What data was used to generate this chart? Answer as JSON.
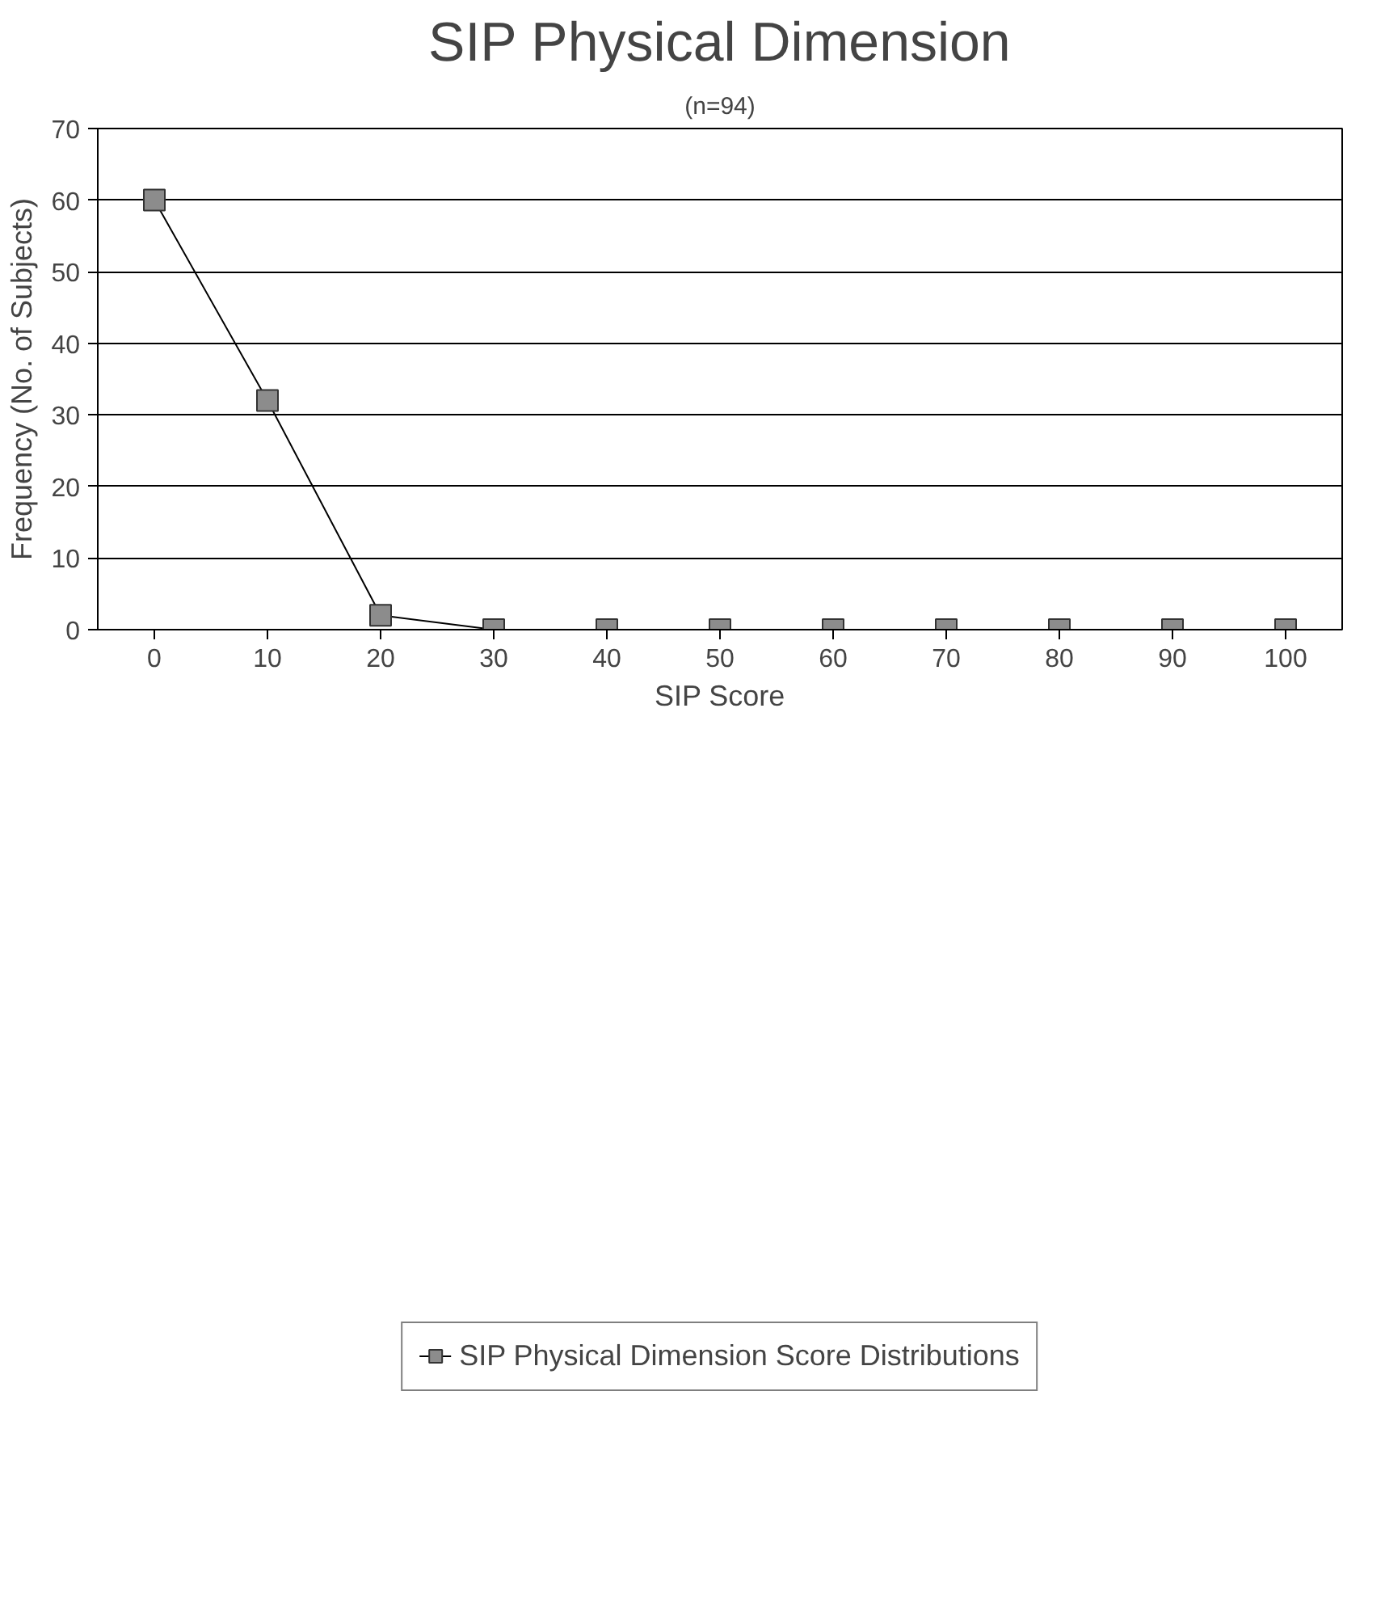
{
  "chart_data": {
    "type": "line",
    "title": "SIP Physical Dimension",
    "subtitle": "(n=94)",
    "xlabel": "SIP Score",
    "ylabel": "Frequency (No. of Subjects)",
    "categories": [
      "0",
      "10",
      "20",
      "30",
      "40",
      "50",
      "60",
      "70",
      "80",
      "90",
      "100"
    ],
    "series": [
      {
        "name": "SIP Physical Dimension Score Distributions",
        "color": "#8c8c8c",
        "values": [
          60,
          32,
          2,
          0,
          0,
          0,
          0,
          0,
          0,
          0,
          0
        ]
      }
    ],
    "ylim": [
      0,
      70
    ],
    "yticks": [
      0,
      10,
      20,
      30,
      40,
      50,
      60,
      70
    ],
    "grid": "y",
    "legend": "bottom",
    "marker": "square",
    "line_style": "solid"
  }
}
